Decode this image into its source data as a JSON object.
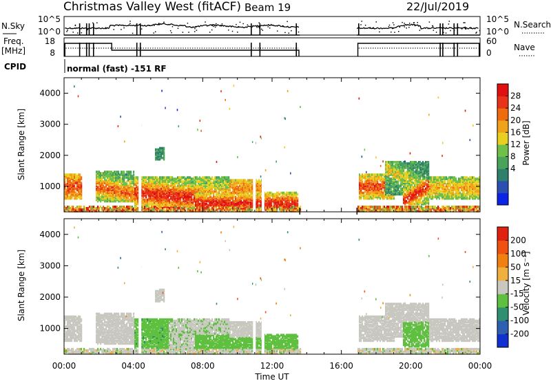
{
  "header": {
    "title": "Christmas Valley West (fitACF)",
    "beam": "Beam 19",
    "date": "22/Jul/2019"
  },
  "top_panels": {
    "nsky_label": "N.Sky",
    "nsky_ticks": [
      "10^5",
      "10^0"
    ],
    "nsearch_label": "N.Search",
    "nsearch_ticks": [
      "10^5",
      "10^0"
    ],
    "freq_label_line1": "Freq.",
    "freq_label_line2": "[MHz]",
    "freq_ticks": [
      "18",
      "8"
    ],
    "nave_label": "Nave",
    "nave_ticks": [
      "60",
      "0"
    ],
    "cpid_label": "CPID",
    "cpid_text": "normal (fast) -151 RF"
  },
  "chart_data": [
    {
      "type": "heatmap",
      "quantity": "Power",
      "ylabel": "Slant Range [km]",
      "ylim": [
        180,
        4500
      ],
      "yticks": [
        1000,
        2000,
        3000,
        4000
      ],
      "xlim_hours": [
        0,
        24
      ],
      "colorbar": {
        "label": "Power [dB]",
        "ticks": [
          "28",
          "24",
          "20",
          "16",
          "12",
          "8",
          "4"
        ],
        "colors": [
          "#0b25e6",
          "#2a4fb0",
          "#2f7f6d",
          "#4aa35a",
          "#6ec04a",
          "#e8cf20",
          "#f0a21a",
          "#ef6b10",
          "#e8321a",
          "#e01010"
        ],
        "range": [
          0,
          31.5
        ]
      }
    },
    {
      "type": "heatmap",
      "quantity": "Velocity",
      "ylabel": "Slant Range [km]",
      "ylim": [
        180,
        4500
      ],
      "yticks": [
        1000,
        2000,
        3000,
        4000
      ],
      "xlim_hours": [
        0,
        24
      ],
      "colorbar": {
        "label": "Velocity [m s⁻¹]",
        "ticks": [
          "200",
          "100",
          "50",
          "15",
          "-15",
          "-50",
          "-100",
          "-200"
        ],
        "colors": [
          "#1030d0",
          "#2f5fb0",
          "#2f8f70",
          "#5fc040",
          "#c8c8c0",
          "#f0b040",
          "#f08010",
          "#f05010",
          "#e02010"
        ],
        "range": [
          -250,
          250
        ]
      }
    }
  ],
  "xaxis": {
    "ticks": [
      "00:00",
      "04:00",
      "08:00",
      "12:00",
      "16:00",
      "20:00",
      "00:00"
    ],
    "label": "Time UT"
  }
}
